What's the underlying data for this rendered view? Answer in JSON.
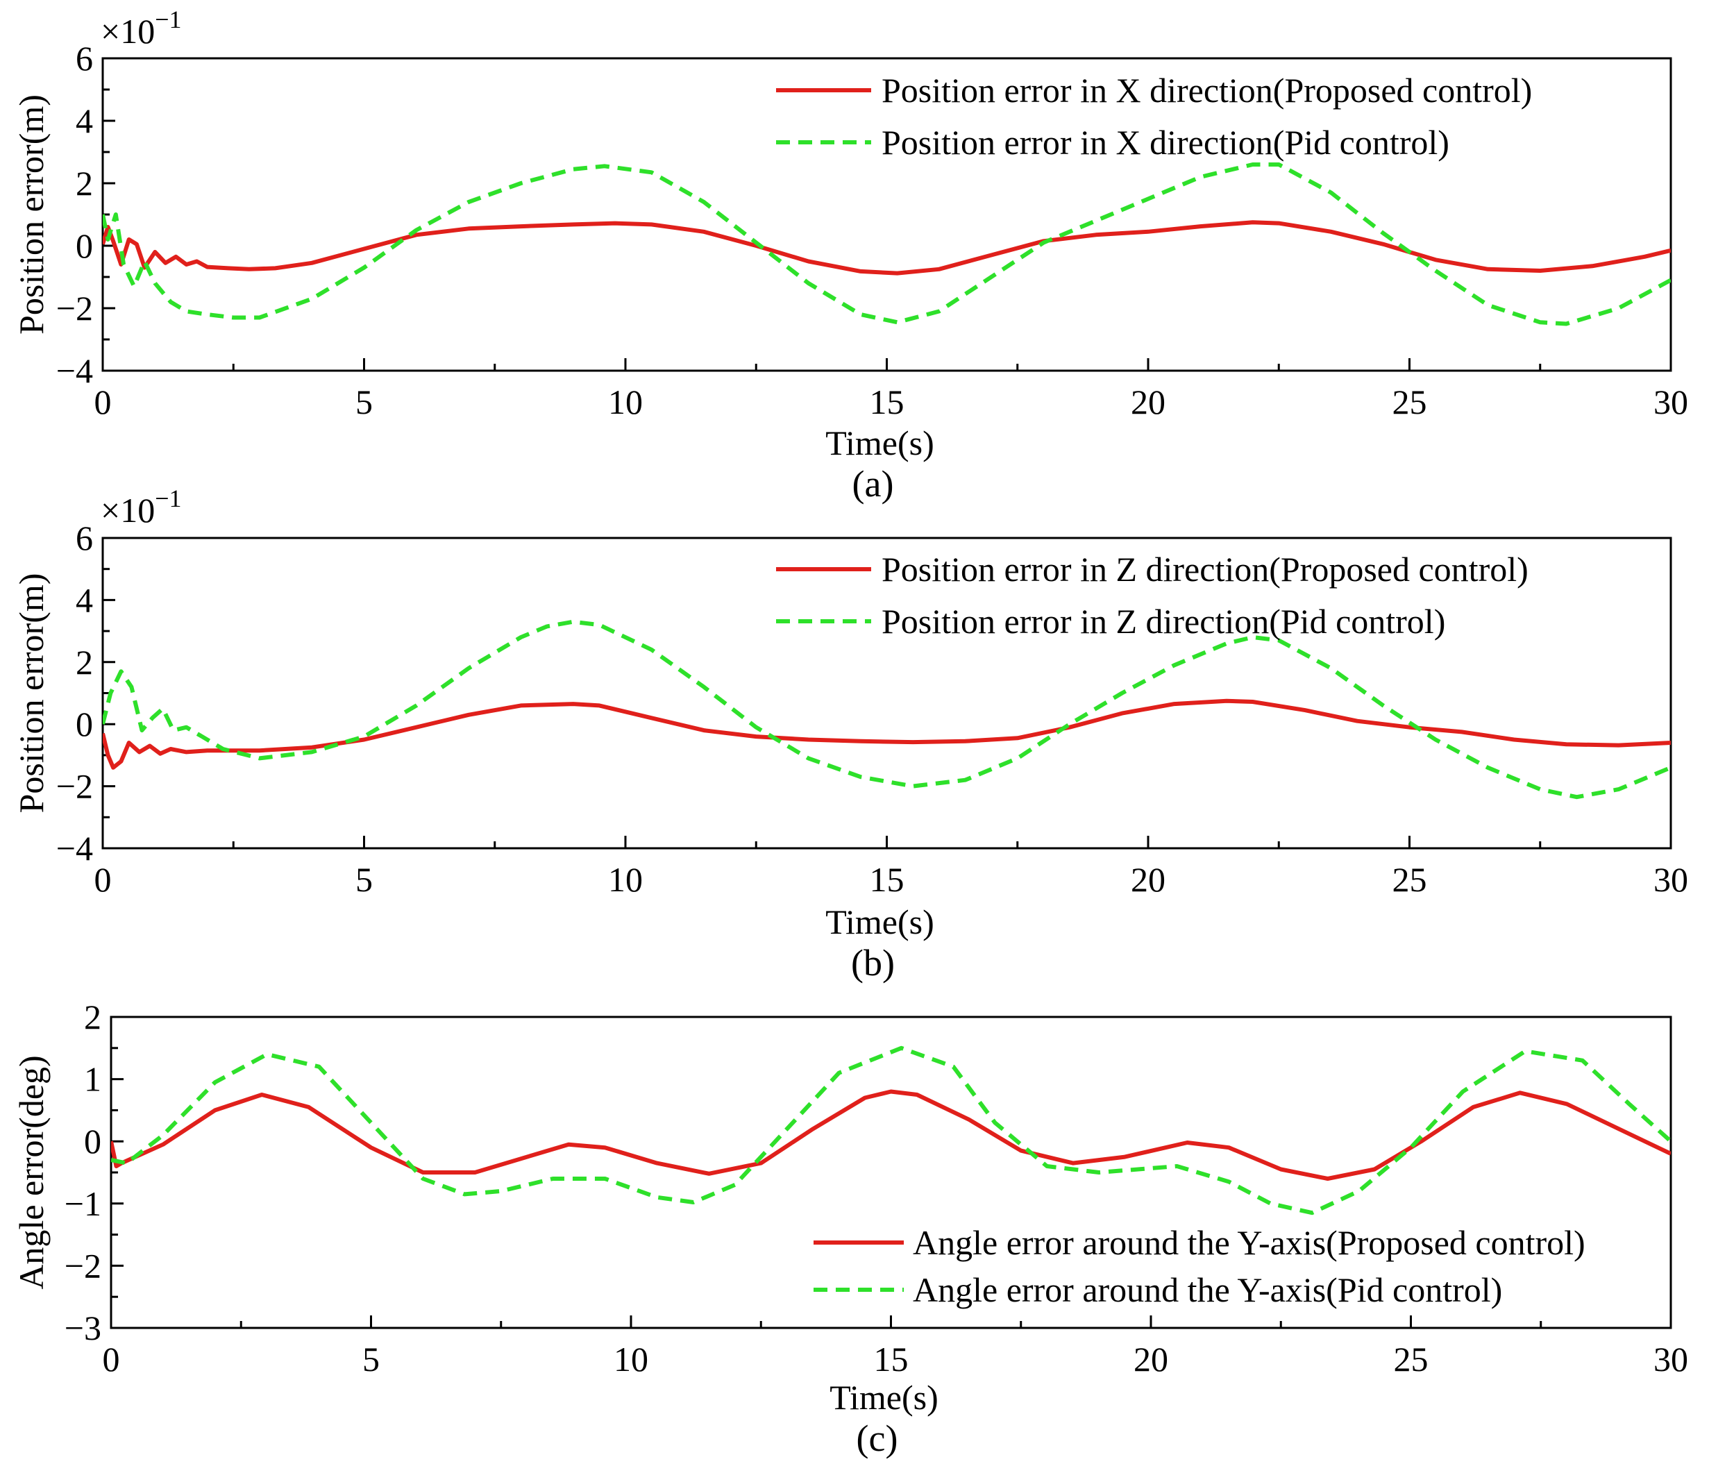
{
  "chart_data": [
    {
      "type": "line",
      "panel": "(a)",
      "scale_note": "×10",
      "scale_exponent": "−1",
      "xlabel": "Time(s)",
      "ylabel": "Position error(m)",
      "xlim": [
        0,
        30
      ],
      "ylim": [
        -4,
        6
      ],
      "x_ticks": [
        0,
        5,
        10,
        15,
        20,
        25,
        30
      ],
      "x_tick_labels": [
        "0",
        "5",
        "10",
        "15",
        "20",
        "25",
        "30"
      ],
      "y_ticks": [
        -4,
        -2,
        0,
        2,
        4,
        6
      ],
      "y_tick_labels": [
        "−4",
        "−2",
        "0",
        "2",
        "4",
        "6"
      ],
      "legend_position": "top-right",
      "series": [
        {
          "name": "Position error in X direction(Proposed control)",
          "color": "#e0201b",
          "style": "solid",
          "x": [
            0,
            0.1,
            0.2,
            0.35,
            0.5,
            0.65,
            0.8,
            1.0,
            1.2,
            1.4,
            1.6,
            1.8,
            2.0,
            2.4,
            2.8,
            3.3,
            4.0,
            5.0,
            6.0,
            7.0,
            8.0,
            9.0,
            9.8,
            10.5,
            11.5,
            12.5,
            13.5,
            14.5,
            15.2,
            16.0,
            17.0,
            18.0,
            19.0,
            20.0,
            21.0,
            22.0,
            22.5,
            23.5,
            24.5,
            25.5,
            26.5,
            27.5,
            28.5,
            29.5,
            30
          ],
          "y": [
            0.05,
            0.6,
            0.15,
            -0.6,
            0.2,
            0.05,
            -0.7,
            -0.2,
            -0.55,
            -0.35,
            -0.6,
            -0.5,
            -0.68,
            -0.72,
            -0.75,
            -0.72,
            -0.55,
            -0.1,
            0.35,
            0.55,
            0.62,
            0.68,
            0.72,
            0.68,
            0.45,
            0.0,
            -0.5,
            -0.82,
            -0.88,
            -0.75,
            -0.3,
            0.15,
            0.35,
            0.45,
            0.62,
            0.75,
            0.72,
            0.45,
            0.05,
            -0.45,
            -0.75,
            -0.8,
            -0.65,
            -0.35,
            -0.15
          ]
        },
        {
          "name": "Position error in X direction(Pid control)",
          "color": "#2ee02a",
          "style": "dashed",
          "x": [
            0,
            0.1,
            0.25,
            0.4,
            0.6,
            0.8,
            1.0,
            1.3,
            1.6,
            2.0,
            2.5,
            3.0,
            4.0,
            5.0,
            6.0,
            7.0,
            8.0,
            9.0,
            9.6,
            10.5,
            11.5,
            12.5,
            13.5,
            14.5,
            15.2,
            16.0,
            17.0,
            18.0,
            19.0,
            20.0,
            21.0,
            22.0,
            22.5,
            23.5,
            24.5,
            25.5,
            26.5,
            27.5,
            28.0,
            29.0,
            30
          ],
          "y": [
            1.0,
            0.2,
            1.0,
            -0.6,
            -1.3,
            -0.5,
            -1.2,
            -1.8,
            -2.1,
            -2.2,
            -2.3,
            -2.3,
            -1.7,
            -0.7,
            0.5,
            1.4,
            2.0,
            2.45,
            2.55,
            2.35,
            1.4,
            0.1,
            -1.2,
            -2.2,
            -2.45,
            -2.1,
            -1.0,
            0.1,
            0.8,
            1.5,
            2.2,
            2.6,
            2.6,
            1.7,
            0.4,
            -0.8,
            -1.9,
            -2.45,
            -2.5,
            -2.0,
            -1.1
          ]
        }
      ]
    },
    {
      "type": "line",
      "panel": "(b)",
      "scale_note": "×10",
      "scale_exponent": "−1",
      "xlabel": "Time(s)",
      "ylabel": "Position error(m)",
      "xlim": [
        0,
        30
      ],
      "ylim": [
        -4,
        6
      ],
      "x_ticks": [
        0,
        5,
        10,
        15,
        20,
        25,
        30
      ],
      "x_tick_labels": [
        "0",
        "5",
        "10",
        "15",
        "20",
        "25",
        "30"
      ],
      "y_ticks": [
        -4,
        -2,
        0,
        2,
        4,
        6
      ],
      "y_tick_labels": [
        "−4",
        "−2",
        "0",
        "2",
        "4",
        "6"
      ],
      "legend_position": "top-right",
      "series": [
        {
          "name": "Position error in Z direction(Proposed control)",
          "color": "#e0201b",
          "style": "solid",
          "x": [
            0,
            0.1,
            0.2,
            0.35,
            0.5,
            0.7,
            0.9,
            1.1,
            1.3,
            1.6,
            2.0,
            3.0,
            4.0,
            5.0,
            6.0,
            7.0,
            8.0,
            9.0,
            9.5,
            10.5,
            11.5,
            12.5,
            13.5,
            14.5,
            15.5,
            16.5,
            17.5,
            18.5,
            19.5,
            20.5,
            21.5,
            22.0,
            23.0,
            24.0,
            25.0,
            26.0,
            27.0,
            28.0,
            29.0,
            30
          ],
          "y": [
            -0.3,
            -1.0,
            -1.4,
            -1.2,
            -0.6,
            -0.9,
            -0.7,
            -0.95,
            -0.8,
            -0.9,
            -0.85,
            -0.85,
            -0.75,
            -0.5,
            -0.1,
            0.3,
            0.6,
            0.65,
            0.6,
            0.2,
            -0.2,
            -0.4,
            -0.5,
            -0.55,
            -0.58,
            -0.55,
            -0.45,
            -0.1,
            0.35,
            0.65,
            0.75,
            0.72,
            0.45,
            0.1,
            -0.1,
            -0.25,
            -0.5,
            -0.65,
            -0.68,
            -0.6
          ]
        },
        {
          "name": "Position error in Z direction(Pid control)",
          "color": "#2ee02a",
          "style": "dashed",
          "x": [
            0,
            0.15,
            0.35,
            0.55,
            0.75,
            0.95,
            1.15,
            1.35,
            1.6,
            1.9,
            2.3,
            3.0,
            4.0,
            5.0,
            6.0,
            7.0,
            8.0,
            8.5,
            9.0,
            9.5,
            10.5,
            11.5,
            12.5,
            13.5,
            14.5,
            15.5,
            16.5,
            17.5,
            18.5,
            19.5,
            20.5,
            21.5,
            22.0,
            22.5,
            23.5,
            24.5,
            25.5,
            26.5,
            27.5,
            28.2,
            29.0,
            30
          ],
          "y": [
            0.0,
            1.0,
            1.7,
            1.2,
            -0.2,
            0.2,
            0.5,
            -0.2,
            -0.1,
            -0.4,
            -0.8,
            -1.1,
            -0.9,
            -0.4,
            0.6,
            1.8,
            2.8,
            3.15,
            3.3,
            3.2,
            2.4,
            1.2,
            -0.1,
            -1.1,
            -1.7,
            -2.0,
            -1.8,
            -1.1,
            0.0,
            1.0,
            1.9,
            2.6,
            2.8,
            2.7,
            1.8,
            0.6,
            -0.5,
            -1.4,
            -2.1,
            -2.35,
            -2.1,
            -1.4
          ]
        }
      ]
    },
    {
      "type": "line",
      "panel": "(c)",
      "xlabel": "Time(s)",
      "ylabel": "Angle error(deg)",
      "xlim": [
        0,
        30
      ],
      "ylim": [
        -3,
        2
      ],
      "x_ticks": [
        0,
        5,
        10,
        15,
        20,
        25,
        30
      ],
      "x_tick_labels": [
        "0",
        "5",
        "10",
        "15",
        "20",
        "25",
        "30"
      ],
      "y_ticks": [
        -3,
        -2,
        -1,
        0,
        1,
        2
      ],
      "y_tick_labels": [
        "−3",
        "−2",
        "−1",
        "0",
        "1",
        "2"
      ],
      "legend_position": "bottom-right",
      "series": [
        {
          "name": "Angle error around the Y-axis(Proposed control)",
          "color": "#e0201b",
          "style": "solid",
          "x": [
            0,
            0.1,
            0.2,
            1.0,
            2.0,
            2.9,
            3.8,
            5.0,
            6.0,
            7.0,
            8.0,
            8.8,
            9.5,
            10.5,
            11.5,
            12.5,
            13.5,
            14.5,
            15.0,
            15.5,
            16.5,
            17.5,
            18.5,
            19.5,
            20.7,
            21.5,
            22.5,
            23.4,
            24.3,
            25.2,
            26.2,
            27.1,
            28.0,
            29.0,
            30
          ],
          "y": [
            0.0,
            -0.4,
            -0.35,
            -0.05,
            0.5,
            0.75,
            0.55,
            -0.1,
            -0.5,
            -0.5,
            -0.25,
            -0.05,
            -0.1,
            -0.35,
            -0.52,
            -0.35,
            0.2,
            0.7,
            0.8,
            0.75,
            0.35,
            -0.15,
            -0.35,
            -0.25,
            -0.02,
            -0.1,
            -0.45,
            -0.6,
            -0.45,
            0.0,
            0.55,
            0.78,
            0.6,
            0.2,
            -0.2
          ]
        },
        {
          "name": "Angle error around the Y-axis(Pid control)",
          "color": "#2ee02a",
          "style": "dashed",
          "x": [
            0,
            0.3,
            1.0,
            2.0,
            3.0,
            4.0,
            5.0,
            6.0,
            6.8,
            7.5,
            8.5,
            9.5,
            10.5,
            11.2,
            12.0,
            13.0,
            14.0,
            15.2,
            16.2,
            17.0,
            18.0,
            19.0,
            20.5,
            21.5,
            22.3,
            23.1,
            24.0,
            25.0,
            26.0,
            27.2,
            28.3,
            29.2,
            30
          ],
          "y": [
            -0.3,
            -0.35,
            0.1,
            0.95,
            1.4,
            1.2,
            0.3,
            -0.6,
            -0.85,
            -0.8,
            -0.6,
            -0.6,
            -0.9,
            -0.98,
            -0.7,
            0.2,
            1.1,
            1.5,
            1.2,
            0.3,
            -0.4,
            -0.5,
            -0.4,
            -0.65,
            -1.0,
            -1.15,
            -0.8,
            -0.1,
            0.8,
            1.45,
            1.3,
            0.6,
            0.0
          ]
        }
      ]
    }
  ]
}
